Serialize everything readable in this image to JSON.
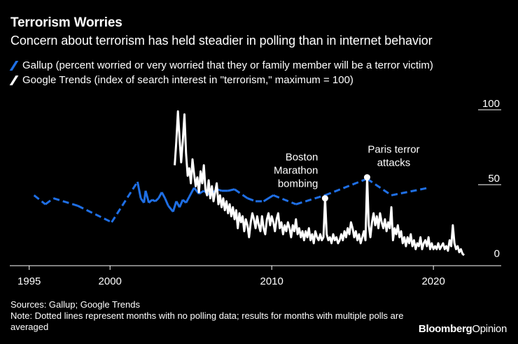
{
  "colors": {
    "background": "#000000",
    "gallup": "#1f6fe5",
    "google": "#ffffff",
    "text": "#ffffff"
  },
  "header": {
    "title": "Terrorism Worries",
    "subtitle": "Concern about terrorism has held steadier in polling than in internet behavior"
  },
  "footer": {
    "source": "Sources: Gallup; Google Trends",
    "note": "Note: Dotted lines represent months with no polling data; results for months with multiple polls are averaged"
  },
  "brand": {
    "part1": "Bloomberg",
    "part2": "Opinion"
  },
  "chart_data": {
    "type": "line",
    "title": "Terrorism Worries",
    "subtitle": "Concern about terrorism has held steadier in polling than in internet behavior",
    "xlabel": "",
    "ylabel": "",
    "xlim": [
      1993.8,
      2023.5
    ],
    "ylim": [
      -5,
      100
    ],
    "x_ticks": [
      1995,
      2000,
      2010,
      2020
    ],
    "x_tick_labels": [
      "1995",
      "2000",
      "2010",
      "2020"
    ],
    "y_ticks": [
      0,
      50,
      100
    ],
    "y_tick_labels": [
      "0",
      "50",
      "100"
    ],
    "legend": "top-left",
    "series": [
      {
        "name": "Gallup (percent worried or very worried that they or family member will be a terror victim)",
        "color": "#1f6fe5",
        "points": [
          [
            1995.3,
            42
          ],
          [
            1996.0,
            36
          ],
          [
            1996.5,
            40
          ],
          [
            1998.0,
            35
          ],
          [
            2000.1,
            24
          ],
          [
            2001.7,
            51
          ],
          [
            2001.9,
            40
          ],
          [
            2002.1,
            37
          ],
          [
            2002.2,
            45
          ],
          [
            2002.4,
            37
          ],
          [
            2002.6,
            39
          ],
          [
            2002.8,
            38
          ],
          [
            2003.0,
            40
          ],
          [
            2003.2,
            44
          ],
          [
            2003.4,
            40
          ],
          [
            2003.6,
            35
          ],
          [
            2003.9,
            31
          ],
          [
            2004.1,
            38
          ],
          [
            2004.3,
            34
          ],
          [
            2004.5,
            39
          ],
          [
            2004.7,
            37
          ],
          [
            2004.9,
            41
          ],
          [
            2005.2,
            47
          ],
          [
            2005.5,
            43
          ],
          [
            2005.8,
            45
          ],
          [
            2006.2,
            42
          ],
          [
            2006.6,
            46
          ],
          [
            2006.9,
            45
          ],
          [
            2007.3,
            45
          ],
          [
            2007.7,
            46
          ],
          [
            2008.5,
            40
          ],
          [
            2009.0,
            38
          ],
          [
            2009.5,
            38
          ],
          [
            2010.1,
            42
          ],
          [
            2011.5,
            36
          ],
          [
            2013.3,
            42
          ],
          [
            2015.9,
            53
          ],
          [
            2017.4,
            42
          ],
          [
            2019.7,
            47
          ]
        ],
        "dashed_ranges": [
          [
            1995.3,
            2001.7
          ],
          [
            2007.7,
            2009.5
          ],
          [
            2010.1,
            2015.9
          ],
          [
            2015.9,
            2019.7
          ]
        ]
      },
      {
        "name": "Google Trends (index of search interest in \"terrorism,\" maximum = 100)",
        "color": "#ffffff",
        "points": [
          [
            2004.0,
            62
          ],
          [
            2004.1,
            78
          ],
          [
            2004.2,
            98
          ],
          [
            2004.3,
            80
          ],
          [
            2004.4,
            64
          ],
          [
            2004.5,
            78
          ],
          [
            2004.6,
            96
          ],
          [
            2004.7,
            70
          ],
          [
            2004.8,
            55
          ],
          [
            2004.9,
            60
          ],
          [
            2005.0,
            50
          ],
          [
            2005.1,
            66
          ],
          [
            2005.2,
            56
          ],
          [
            2005.3,
            48
          ],
          [
            2005.4,
            54
          ],
          [
            2005.5,
            44
          ],
          [
            2005.6,
            58
          ],
          [
            2005.7,
            50
          ],
          [
            2005.8,
            62
          ],
          [
            2005.9,
            46
          ],
          [
            2006.0,
            42
          ],
          [
            2006.1,
            52
          ],
          [
            2006.2,
            40
          ],
          [
            2006.3,
            48
          ],
          [
            2006.4,
            38
          ],
          [
            2006.5,
            44
          ],
          [
            2006.6,
            50
          ],
          [
            2006.7,
            36
          ],
          [
            2006.8,
            42
          ],
          [
            2006.9,
            34
          ],
          [
            2007.0,
            40
          ],
          [
            2007.1,
            32
          ],
          [
            2007.2,
            38
          ],
          [
            2007.3,
            30
          ],
          [
            2007.4,
            36
          ],
          [
            2007.5,
            28
          ],
          [
            2007.6,
            34
          ],
          [
            2007.7,
            26
          ],
          [
            2007.8,
            32
          ],
          [
            2007.9,
            20
          ],
          [
            2008.0,
            30
          ],
          [
            2008.1,
            24
          ],
          [
            2008.2,
            28
          ],
          [
            2008.3,
            18
          ],
          [
            2008.4,
            26
          ],
          [
            2008.5,
            22
          ],
          [
            2008.6,
            14
          ],
          [
            2008.7,
            24
          ],
          [
            2008.8,
            30
          ],
          [
            2008.9,
            26
          ],
          [
            2009.0,
            20
          ],
          [
            2009.1,
            28
          ],
          [
            2009.2,
            22
          ],
          [
            2009.3,
            18
          ],
          [
            2009.4,
            28
          ],
          [
            2009.5,
            20
          ],
          [
            2009.6,
            16
          ],
          [
            2009.7,
            26
          ],
          [
            2009.8,
            30
          ],
          [
            2009.9,
            22
          ],
          [
            2010.0,
            28
          ],
          [
            2010.1,
            24
          ],
          [
            2010.2,
            18
          ],
          [
            2010.3,
            26
          ],
          [
            2010.4,
            30
          ],
          [
            2010.5,
            20
          ],
          [
            2010.6,
            24
          ],
          [
            2010.7,
            16
          ],
          [
            2010.8,
            22
          ],
          [
            2010.9,
            18
          ],
          [
            2011.0,
            24
          ],
          [
            2011.1,
            20
          ],
          [
            2011.2,
            14
          ],
          [
            2011.3,
            22
          ],
          [
            2011.4,
            18
          ],
          [
            2011.5,
            26
          ],
          [
            2011.6,
            16
          ],
          [
            2011.7,
            20
          ],
          [
            2011.8,
            14
          ],
          [
            2011.9,
            18
          ],
          [
            2012.0,
            12
          ],
          [
            2012.1,
            18
          ],
          [
            2012.2,
            14
          ],
          [
            2012.3,
            20
          ],
          [
            2012.4,
            12
          ],
          [
            2012.5,
            16
          ],
          [
            2012.6,
            10
          ],
          [
            2012.7,
            18
          ],
          [
            2012.8,
            14
          ],
          [
            2012.9,
            12
          ],
          [
            2013.0,
            16
          ],
          [
            2013.1,
            12
          ],
          [
            2013.2,
            14
          ],
          [
            2013.3,
            40
          ],
          [
            2013.4,
            16
          ],
          [
            2013.5,
            12
          ],
          [
            2013.6,
            14
          ],
          [
            2013.7,
            10
          ],
          [
            2013.8,
            16
          ],
          [
            2013.9,
            12
          ],
          [
            2014.0,
            14
          ],
          [
            2014.1,
            10
          ],
          [
            2014.2,
            12
          ],
          [
            2014.3,
            16
          ],
          [
            2014.4,
            12
          ],
          [
            2014.5,
            18
          ],
          [
            2014.6,
            14
          ],
          [
            2014.7,
            20
          ],
          [
            2014.8,
            16
          ],
          [
            2014.9,
            24
          ],
          [
            2015.0,
            20
          ],
          [
            2015.1,
            14
          ],
          [
            2015.2,
            18
          ],
          [
            2015.3,
            12
          ],
          [
            2015.4,
            16
          ],
          [
            2015.5,
            10
          ],
          [
            2015.6,
            14
          ],
          [
            2015.7,
            18
          ],
          [
            2015.8,
            12
          ],
          [
            2015.9,
            54
          ],
          [
            2016.0,
            22
          ],
          [
            2016.1,
            14
          ],
          [
            2016.2,
            24
          ],
          [
            2016.3,
            30
          ],
          [
            2016.4,
            22
          ],
          [
            2016.5,
            28
          ],
          [
            2016.6,
            20
          ],
          [
            2016.7,
            30
          ],
          [
            2016.8,
            24
          ],
          [
            2016.9,
            20
          ],
          [
            2017.0,
            26
          ],
          [
            2017.1,
            18
          ],
          [
            2017.2,
            24
          ],
          [
            2017.3,
            20
          ],
          [
            2017.4,
            34
          ],
          [
            2017.5,
            12
          ],
          [
            2017.6,
            20
          ],
          [
            2017.7,
            16
          ],
          [
            2017.8,
            22
          ],
          [
            2017.9,
            14
          ],
          [
            2018.0,
            18
          ],
          [
            2018.1,
            10
          ],
          [
            2018.2,
            14
          ],
          [
            2018.3,
            8
          ],
          [
            2018.4,
            14
          ],
          [
            2018.5,
            10
          ],
          [
            2018.6,
            16
          ],
          [
            2018.7,
            8
          ],
          [
            2018.8,
            12
          ],
          [
            2018.9,
            6
          ],
          [
            2019.0,
            10
          ],
          [
            2019.1,
            8
          ],
          [
            2019.2,
            14
          ],
          [
            2019.3,
            6
          ],
          [
            2019.4,
            10
          ],
          [
            2019.5,
            12
          ],
          [
            2019.6,
            8
          ],
          [
            2019.7,
            14
          ],
          [
            2019.8,
            6
          ],
          [
            2019.9,
            10
          ],
          [
            2020.0,
            6
          ],
          [
            2020.1,
            8
          ],
          [
            2020.2,
            6
          ],
          [
            2020.3,
            10
          ],
          [
            2020.4,
            6
          ],
          [
            2020.5,
            8
          ],
          [
            2020.6,
            10
          ],
          [
            2020.7,
            6
          ],
          [
            2020.8,
            8
          ],
          [
            2020.9,
            5
          ],
          [
            2021.0,
            12
          ],
          [
            2021.1,
            8
          ],
          [
            2021.2,
            22
          ],
          [
            2021.3,
            10
          ],
          [
            2021.4,
            6
          ],
          [
            2021.5,
            8
          ],
          [
            2021.6,
            4
          ],
          [
            2021.7,
            6
          ],
          [
            2021.8,
            3
          ],
          [
            2021.9,
            2
          ]
        ]
      }
    ],
    "annotations": [
      {
        "label_lines": [
          "Boston",
          "Marathon",
          "bombing"
        ],
        "x": 2013.3,
        "y": 40
      },
      {
        "label_lines": [
          "Paris terror",
          "attacks"
        ],
        "x": 2015.9,
        "y": 54
      }
    ]
  }
}
